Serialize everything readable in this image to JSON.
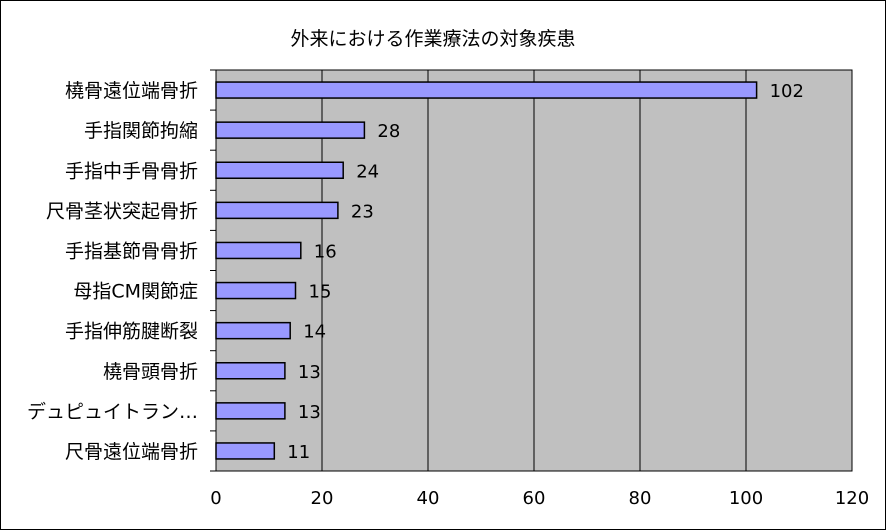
{
  "chart_data": {
    "type": "bar",
    "orientation": "horizontal",
    "title": "外来における作業療法の対象疾患",
    "xlabel": "",
    "ylabel": "",
    "xlim": [
      0,
      120
    ],
    "x_ticks": [
      0,
      20,
      40,
      60,
      80,
      100,
      120
    ],
    "grid": true,
    "legend": "none",
    "categories": [
      "橈骨遠位端骨折",
      "手指関節拘縮",
      "手指中手骨骨折",
      "尺骨茎状突起骨折",
      "手指基節骨骨折",
      "母指CM関節症",
      "手指伸筋腱断裂",
      "橈骨頭骨折",
      "デュピュイトラン…",
      "尺骨遠位端骨折"
    ],
    "values": [
      102,
      28,
      24,
      23,
      16,
      15,
      14,
      13,
      13,
      11
    ],
    "colors": {
      "bar_fill": "#9999ff",
      "bar_stroke": "#000000",
      "plot_background": "#c0c0c0",
      "grid": "#000000"
    }
  }
}
